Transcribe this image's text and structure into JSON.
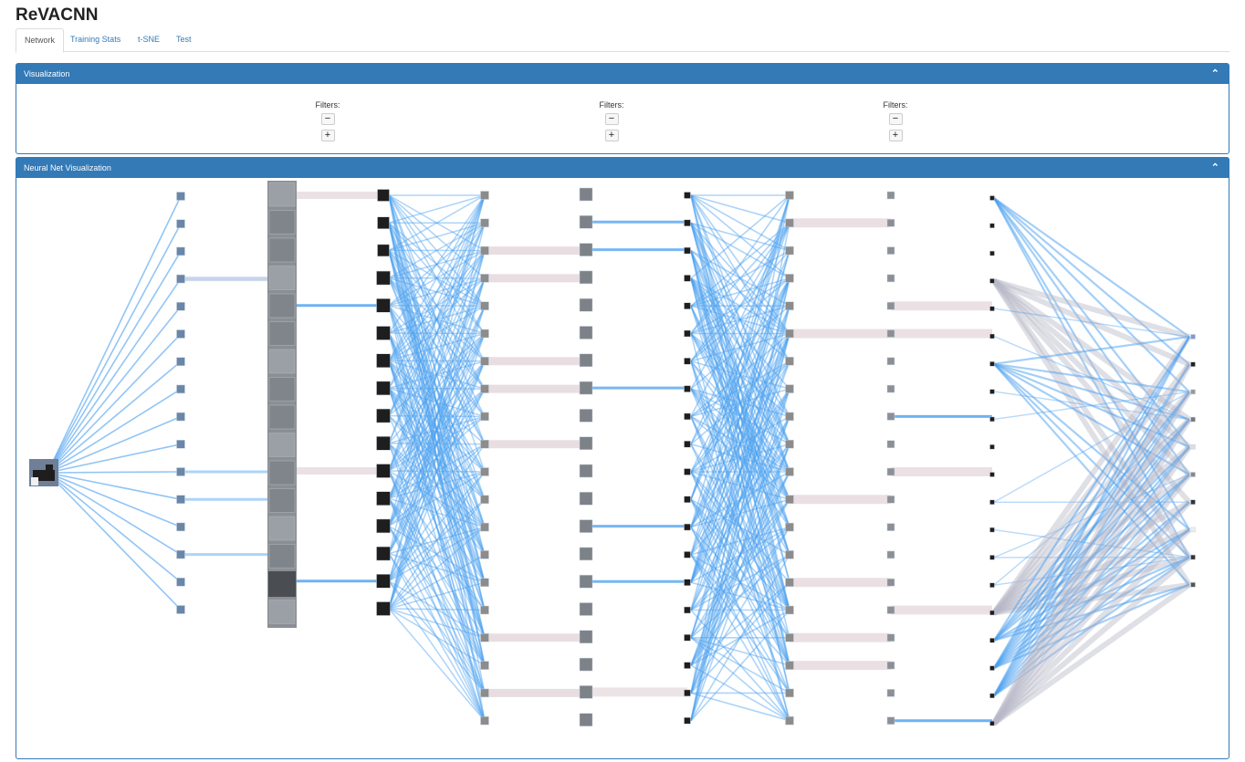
{
  "app": {
    "title": "ReVACNN"
  },
  "tabs": [
    {
      "label": "Network",
      "active": true
    },
    {
      "label": "Training Stats",
      "active": false
    },
    {
      "label": "t-SNE",
      "active": false
    },
    {
      "label": "Test",
      "active": false
    }
  ],
  "visualization_panel": {
    "title": "Visualization",
    "collapse_icon": "chevron-up-icon",
    "filter_groups": [
      {
        "label": "Filters:",
        "minus": "−",
        "plus": "+"
      },
      {
        "label": "Filters:",
        "minus": "−",
        "plus": "+"
      },
      {
        "label": "Filters:",
        "minus": "−",
        "plus": "+"
      }
    ]
  },
  "network_panel": {
    "title": "Neural Net Visualization",
    "collapse_icon": "chevron-up-icon",
    "layers": [
      {
        "role": "input image",
        "nodes": 1
      },
      {
        "role": "conv",
        "nodes": 16
      },
      {
        "role": "conv (enlarged)",
        "nodes": 16
      },
      {
        "role": "relu",
        "nodes": 16
      },
      {
        "role": "conv",
        "nodes": 20
      },
      {
        "role": "relu",
        "nodes": 20
      },
      {
        "role": "pool",
        "nodes": 20
      },
      {
        "role": "conv",
        "nodes": 20
      },
      {
        "role": "relu",
        "nodes": 20
      },
      {
        "role": "pool",
        "nodes": 20
      },
      {
        "role": "softmax",
        "nodes": 10
      }
    ]
  },
  "colors": {
    "primary": "#337ab7",
    "edge_blue": "#4a9ff0",
    "edge_pink": "#e6dade",
    "node_dark": "#1e1e1e",
    "node_gray": "#8c8c8c"
  }
}
